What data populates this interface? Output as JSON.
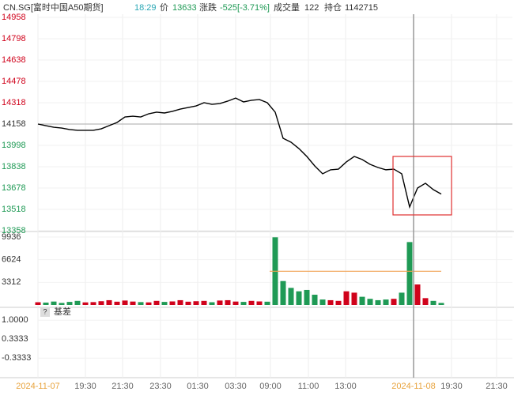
{
  "header": {
    "symbol": "CN.SG[富时中国A50期货]",
    "time": "18:29",
    "price_label": "价",
    "price": "13633",
    "change_label": "涨跌",
    "change": "-525[-3.71%]",
    "volume_label": "成交量",
    "volume": "122",
    "oi_label": "持仓",
    "oi": "1142715"
  },
  "chart_data": [
    {
      "type": "line",
      "color": "#000000",
      "ref_value": 14158,
      "up_color": "#d0021b",
      "down_color": "#1f9a55",
      "xlim": [
        0,
        60
      ],
      "ylim": [
        13358,
        14958
      ],
      "yticks": [
        14958,
        14798,
        14638,
        14478,
        14318,
        14158,
        13998,
        13838,
        13678,
        13518,
        13358
      ],
      "values": [
        14158,
        14146,
        14134,
        14128,
        14117,
        14111,
        14111,
        14111,
        14122,
        14146,
        14170,
        14211,
        14217,
        14211,
        14235,
        14247,
        14241,
        14253,
        14270,
        14282,
        14294,
        14318,
        14306,
        14312,
        14330,
        14353,
        14324,
        14336,
        14342,
        14318,
        14247,
        14051,
        14022,
        13974,
        13915,
        13844,
        13785,
        13815,
        13820,
        13874,
        13915,
        13892,
        13856,
        13832,
        13815,
        13820,
        13785,
        13536,
        13678,
        13714,
        13666,
        13633
      ]
    },
    {
      "type": "bar",
      "avg_color": "#f0a050",
      "avg_volume": 4930,
      "avg_from": 29.3,
      "xlim": [
        0,
        60
      ],
      "ylim": [
        0,
        9936
      ],
      "yticks": [
        9936,
        6624,
        3312
      ],
      "values": [
        400,
        350,
        500,
        300,
        450,
        600,
        380,
        420,
        550,
        700,
        480,
        650,
        500,
        420,
        380,
        600,
        450,
        520,
        700,
        480,
        550,
        600,
        400,
        650,
        700,
        500,
        450,
        600,
        520,
        480,
        9900,
        3500,
        2500,
        2000,
        2200,
        1500,
        800,
        700,
        600,
        2000,
        1800,
        1200,
        900,
        700,
        800,
        900,
        1800,
        9200,
        3000,
        1000,
        600,
        300
      ]
    },
    {
      "type": "line",
      "title": "基差",
      "xlim": [
        0,
        60
      ],
      "ylim": [
        -0.8,
        1.2
      ],
      "yticks": [
        {
          "value": 1,
          "label": "1.0000"
        },
        {
          "value": 0.3333,
          "label": "0.3333"
        },
        {
          "value": -0.3333,
          "label": "-0.3333"
        }
      ],
      "xticks": [
        {
          "value": 0,
          "label": "2024-11-07"
        },
        {
          "value": 6,
          "label": "19:30"
        },
        {
          "value": 10.7,
          "label": "21:30"
        },
        {
          "value": 15.5,
          "label": "23:30"
        },
        {
          "value": 20.2,
          "label": "01:30"
        },
        {
          "value": 25,
          "label": "03:30"
        },
        {
          "value": 29.4,
          "label": "09:00"
        },
        {
          "value": 34.2,
          "label": "11:00"
        },
        {
          "value": 38.9,
          "label": "13:00"
        },
        {
          "value": 47.5,
          "label": "2024-11-08"
        },
        {
          "value": 52.3,
          "label": "19:30"
        },
        {
          "value": 58,
          "label": "21:30"
        }
      ]
    }
  ]
}
